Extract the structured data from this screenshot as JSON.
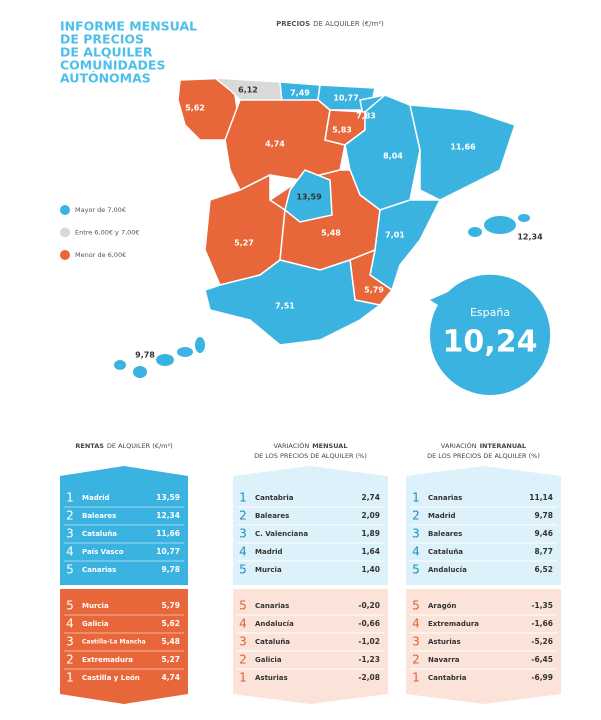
{
  "header": {
    "title_lines": [
      "INFORME MENSUAL",
      "DE PRECIOS",
      "DE ALQUILER",
      "COMUNIDADES",
      "AUTÓNOMAS"
    ]
  },
  "map": {
    "title_bold": "PRECIOS",
    "title_rest": "DE ALQUILER (€/m²)",
    "labels": [
      "6,12",
      "7,49",
      "10,77",
      "5,62",
      "7,83",
      "5,83",
      "4,74",
      "8,04",
      "11,66",
      "13,59",
      "5,27",
      "5,48",
      "7,01",
      "12,34",
      "5,79",
      "7,51",
      "9,78"
    ],
    "legend": [
      "Mayor de 7,00€",
      "Entre 6,00€ y 7,00€",
      "Menor de 6,00€"
    ],
    "spain": {
      "label": "España",
      "value": "10,24"
    }
  },
  "tables": [
    {
      "title_pre": "",
      "title_bold": "RENTAS",
      "title_post": "DE ALQUILER (€/m²)",
      "top": [
        [
          1,
          "Madrid",
          "13,59"
        ],
        [
          2,
          "Baleares",
          "12,34"
        ],
        [
          3,
          "Cataluña",
          "11,66"
        ],
        [
          4,
          "País Vasco",
          "10,77"
        ],
        [
          5,
          "Canarias",
          "9,78"
        ]
      ],
      "bottom": [
        [
          5,
          "Murcia",
          "5,79"
        ],
        [
          4,
          "Galicia",
          "5,62"
        ],
        [
          3,
          "Castilla-La Mancha",
          "5,48"
        ],
        [
          2,
          "Extremadura",
          "5,27"
        ],
        [
          1,
          "Castilla y León",
          "4,74"
        ]
      ]
    },
    {
      "title_pre": "VARIACIÓN",
      "title_bold": "MENSUAL",
      "title_post": "DE LOS PRECIOS DE ALQUILER (%)",
      "top": [
        [
          1,
          "Cantabria",
          "2,74"
        ],
        [
          2,
          "Baleares",
          "2,09"
        ],
        [
          3,
          "C. Valenciana",
          "1,89"
        ],
        [
          4,
          "Madrid",
          "1,64"
        ],
        [
          5,
          "Murcia",
          "1,40"
        ]
      ],
      "bottom": [
        [
          5,
          "Canarias",
          "-0,20"
        ],
        [
          4,
          "Andalucía",
          "-0,66"
        ],
        [
          3,
          "Cataluña",
          "-1,02"
        ],
        [
          2,
          "Galicia",
          "-1,23"
        ],
        [
          1,
          "Asturias",
          "-2,08"
        ]
      ]
    },
    {
      "title_pre": "VARIACIÓN",
      "title_bold": "INTERANUAL",
      "title_post": "DE LOS PRECIOS DE ALQUILER (%)",
      "top": [
        [
          1,
          "Canarias",
          "11,14"
        ],
        [
          2,
          "Madrid",
          "9,78"
        ],
        [
          3,
          "Baleares",
          "9,46"
        ],
        [
          4,
          "Cataluña",
          "8,77"
        ],
        [
          5,
          "Andalucía",
          "6,52"
        ]
      ],
      "bottom": [
        [
          5,
          "Aragón",
          "-1,35"
        ],
        [
          4,
          "Extremadura",
          "-1,66"
        ],
        [
          3,
          "Asturias",
          "-5,26"
        ],
        [
          2,
          "Navarra",
          "-6,45"
        ],
        [
          1,
          "Cantabria",
          "-6,99"
        ]
      ]
    }
  ]
}
